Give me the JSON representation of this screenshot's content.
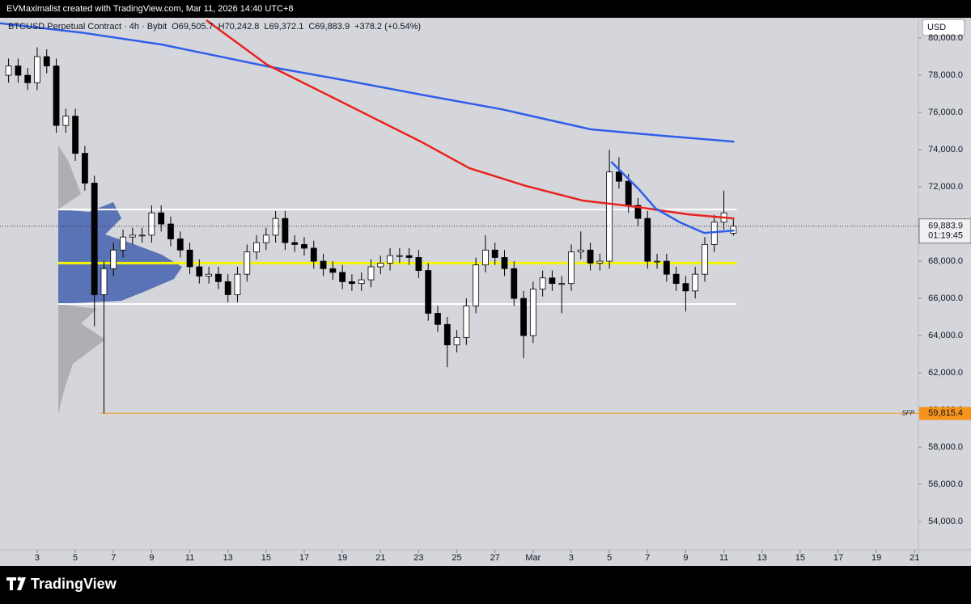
{
  "header": {
    "attribution": "EVMaximalist created with TradingView.com, Mar 11, 2026 14:40 UTC+8",
    "symbol": "BTCUSD Perpetual Contract · 4h · Bybit",
    "open": "O69,505.7",
    "high": "H70,242.8",
    "low": "L69,372.1",
    "close": "C69,883.9",
    "change": "+378.2 (+0.54%)",
    "currency": "USD"
  },
  "chart_data": {
    "type": "candlestick",
    "x": [
      1.5,
      2,
      2.5,
      3,
      3.5,
      4,
      4.5,
      5,
      5.5,
      6,
      6.5,
      7,
      7.5,
      8,
      8.5,
      9,
      9.5,
      10,
      10.5,
      11,
      11.5,
      12,
      12.5,
      13,
      13.5,
      14,
      14.5,
      15,
      15.5,
      16,
      16.5,
      17,
      17.5,
      18,
      18.5,
      19,
      19.5,
      20,
      20.5,
      21,
      21.5,
      22,
      22.5,
      23,
      23.5,
      24,
      24.5,
      25,
      25.5,
      26,
      26.5,
      27,
      27.5,
      28,
      28.5,
      29,
      29.5,
      30,
      30.5,
      31,
      31.5,
      32,
      32.5,
      33,
      33.5,
      34,
      34.5,
      35,
      35.5,
      36,
      36.5,
      37,
      37.5,
      38,
      38.5,
      39,
      39.5
    ],
    "open": [
      78000,
      78500,
      78000,
      77600,
      79000,
      78500,
      75300,
      75800,
      73800,
      72200,
      66200,
      67600,
      68600,
      69300,
      69400,
      69400,
      70600,
      70000,
      69200,
      68600,
      67700,
      67200,
      67300,
      66900,
      66200,
      67300,
      68500,
      69000,
      69400,
      70300,
      69000,
      68900,
      68700,
      68000,
      67600,
      67400,
      66900,
      66800,
      67000,
      67700,
      67900,
      68300,
      68300,
      68200,
      67500,
      65200,
      64600,
      63500,
      63900,
      65600,
      67800,
      68600,
      68200,
      67600,
      66000,
      64000,
      66500,
      67100,
      66800,
      66800,
      68500,
      68600,
      67900,
      68000,
      72800,
      72300,
      71000,
      70300,
      68000,
      68000,
      67300,
      66800,
      66400,
      67300,
      68900,
      70100,
      69505.7
    ],
    "high": [
      78900,
      78900,
      78400,
      79500,
      79400,
      78900,
      76200,
      76200,
      74200,
      72600,
      68000,
      69000,
      69700,
      69800,
      69800,
      71000,
      71000,
      70400,
      69600,
      69000,
      68100,
      67700,
      67700,
      67300,
      67700,
      68900,
      69400,
      69800,
      70700,
      70700,
      69400,
      69300,
      69100,
      68400,
      68000,
      67800,
      67300,
      67400,
      68100,
      68300,
      68700,
      68700,
      68700,
      68600,
      67900,
      65600,
      65000,
      64300,
      66000,
      68200,
      69400,
      69000,
      68600,
      68000,
      66400,
      66900,
      67500,
      67500,
      67200,
      68900,
      69600,
      69000,
      68400,
      74000,
      73600,
      72700,
      71400,
      70700,
      68400,
      68400,
      67700,
      67200,
      67700,
      69300,
      70500,
      71800,
      70242.8
    ],
    "low": [
      77600,
      77600,
      77200,
      77200,
      78100,
      74900,
      74900,
      73400,
      71800,
      64500,
      59815.4,
      67200,
      68200,
      68900,
      69000,
      69000,
      69600,
      68800,
      68200,
      67300,
      66800,
      66800,
      66500,
      65800,
      65800,
      66900,
      68100,
      68600,
      69000,
      68600,
      68500,
      68300,
      67600,
      67200,
      67000,
      66500,
      66400,
      66400,
      66600,
      67300,
      67500,
      67900,
      67800,
      67100,
      64800,
      64200,
      62300,
      63100,
      63500,
      65200,
      67400,
      67800,
      67200,
      65600,
      62800,
      63600,
      66100,
      66400,
      65200,
      66400,
      68100,
      67500,
      67500,
      67600,
      71900,
      70600,
      69900,
      67600,
      67600,
      66900,
      66400,
      65300,
      66000,
      66900,
      68500,
      69700,
      69372.1
    ],
    "close": [
      78500,
      78000,
      77600,
      79000,
      78500,
      75300,
      75800,
      73800,
      72200,
      66200,
      67600,
      68600,
      69300,
      69400,
      69400,
      70600,
      70000,
      69200,
      68600,
      67700,
      67200,
      67300,
      66900,
      66200,
      67300,
      68500,
      69000,
      69400,
      70300,
      69000,
      68900,
      68700,
      68000,
      67600,
      67400,
      66900,
      66800,
      67000,
      67700,
      67900,
      68300,
      68300,
      68200,
      67500,
      65200,
      64600,
      63500,
      63900,
      65600,
      67800,
      68600,
      68200,
      67600,
      66000,
      64000,
      66500,
      67100,
      66800,
      66800,
      68500,
      68600,
      67900,
      68000,
      72800,
      72300,
      71000,
      70300,
      68000,
      68000,
      67300,
      66800,
      66400,
      67300,
      68900,
      70100,
      70600,
      69883.9
    ],
    "up_color": "#ffffff",
    "down_color": "#000000",
    "lines": [
      {
        "color": "#2f5fe8",
        "x": [
          1.05,
          5.29,
          9.54,
          15.05,
          19.3,
          23.12,
          27.36,
          32.03,
          35.85,
          39.55
        ],
        "values": [
          80800,
          80300,
          79650,
          78480,
          77700,
          76960,
          76170,
          75090,
          74740,
          74430
        ]
      },
      {
        "color": "#e8231e",
        "x": [
          11.87,
          15.05,
          18.03,
          23.12,
          25.67,
          28.64,
          31.61,
          34.15,
          37.13,
          39.55
        ],
        "values": [
          80960,
          78570,
          77040,
          74430,
          73000,
          72040,
          71260,
          70960,
          70520,
          70300
        ]
      },
      {
        "color": "#2f5fe8",
        "x": [
          33.09,
          34.58,
          35.43,
          36.7,
          37.97,
          39.55
        ],
        "values": [
          73350,
          71830,
          70830,
          70090,
          69520,
          69650
        ]
      }
    ],
    "levels": [
      {
        "value": 70780,
        "color": "#ffffff",
        "from": 4.1
      },
      {
        "value": 67900,
        "color": "#f5f500",
        "from": 4.1
      },
      {
        "value": 65700,
        "color": "#ffffff",
        "from": 4.1
      },
      {
        "value": 59815.4,
        "color": "#f7931a",
        "from": 6.3,
        "extend": true,
        "label": "SFP",
        "price_label": "59,815.4"
      }
    ],
    "last_price": {
      "value": 69883.9,
      "label": "69,883.9",
      "countdown": "01:19:45"
    },
    "xlim": [
      1.05,
      49.2
    ],
    "xticks": [
      3,
      5,
      7,
      9,
      11,
      13,
      15,
      17,
      19,
      21,
      23,
      25,
      27,
      {
        "value": 29,
        "label": "Mar"
      },
      {
        "value": 31,
        "label": "3"
      },
      {
        "value": 33,
        "label": "5"
      },
      {
        "value": 35,
        "label": "7"
      },
      {
        "value": 37,
        "label": "9"
      },
      {
        "value": 39,
        "label": "11"
      },
      {
        "value": 41,
        "label": "13"
      },
      {
        "value": 43,
        "label": "15"
      },
      {
        "value": 45,
        "label": "17"
      },
      {
        "value": 47,
        "label": "19"
      },
      {
        "value": 49,
        "label": "21"
      }
    ],
    "ylim": [
      52480,
      81090
    ],
    "yticks": [
      {
        "value": 54000,
        "label": "54,000.0"
      },
      {
        "value": 56000,
        "label": "56,000.0"
      },
      {
        "value": 58000,
        "label": "58,000.0"
      },
      {
        "value": 60000,
        "label": "60,000.0"
      },
      {
        "value": 62000,
        "label": "62,000.0"
      },
      {
        "value": 64000,
        "label": "64,000.0"
      },
      {
        "value": 66000,
        "label": "66,000.0"
      },
      {
        "value": 68000,
        "label": "68,000.0"
      },
      {
        "value": 70000,
        "label": "70,000.0"
      },
      {
        "value": 72000,
        "label": "72,000.0"
      },
      {
        "value": 74000,
        "label": "74,000.0"
      },
      {
        "value": 76000,
        "label": "76,000.0"
      },
      {
        "value": 78000,
        "label": "78,000.0"
      },
      {
        "value": 80000,
        "label": "80,000.0"
      }
    ]
  },
  "footer": {
    "brand": "TradingView"
  }
}
